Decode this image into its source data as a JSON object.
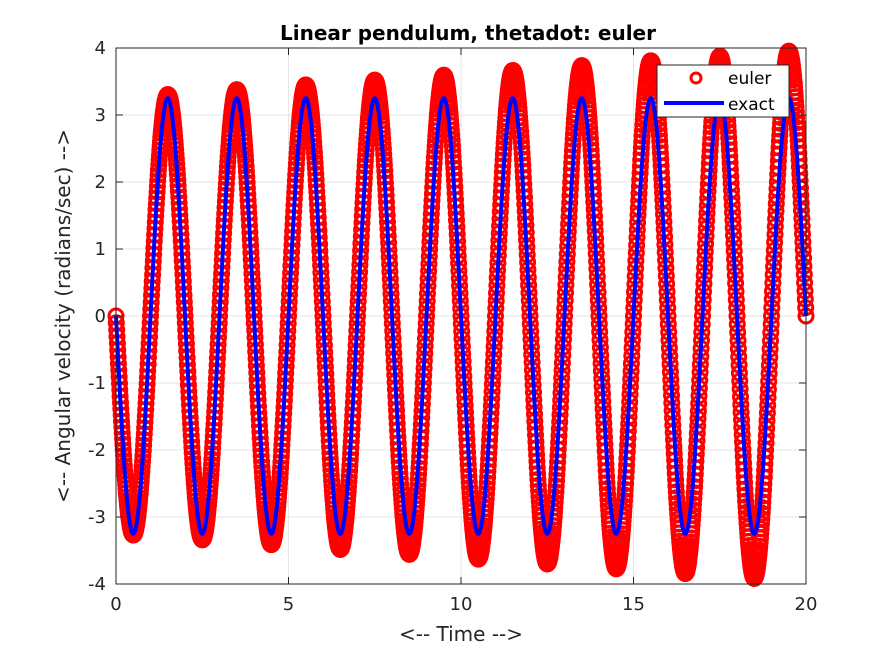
{
  "chart_data": {
    "type": "line",
    "title": "Linear pendulum, thetadot: euler",
    "xlabel": "<-- Time -->",
    "ylabel": "<-- Angular velocity (radians/sec) -->",
    "xlim": [
      0,
      20
    ],
    "ylim": [
      -4,
      4
    ],
    "xticks": [
      0,
      5,
      10,
      15,
      20
    ],
    "yticks": [
      -4,
      -3,
      -2,
      -1,
      0,
      1,
      2,
      3,
      4
    ],
    "xtick_labels": [
      "0",
      "5",
      "10",
      "15",
      "20"
    ],
    "ytick_labels": [
      "-4",
      "-3",
      "-2",
      "-1",
      "0",
      "1",
      "2",
      "3",
      "4"
    ],
    "grid": true,
    "legend_position": "top-right",
    "series": [
      {
        "name": "euler",
        "style": "red open-circle markers",
        "color": "#ff0000",
        "amplitude_start": 3.25,
        "amplitude_end": 3.97,
        "period": 2.0,
        "phase": "negative-sine",
        "x_range": [
          0,
          20
        ]
      },
      {
        "name": "exact",
        "style": "solid blue line",
        "color": "#0000ff",
        "amplitude": 3.25,
        "period": 2.0,
        "phase": "negative-sine",
        "x_range": [
          0,
          20
        ]
      }
    ]
  }
}
